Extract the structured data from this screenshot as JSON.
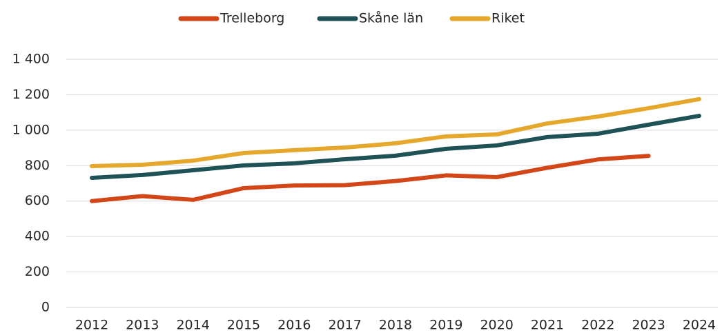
{
  "chart_data": {
    "type": "line",
    "categories": [
      "2012",
      "2013",
      "2014",
      "2015",
      "2016",
      "2017",
      "2018",
      "2019",
      "2020",
      "2021",
      "2022",
      "2023",
      "2024"
    ],
    "series": [
      {
        "name": "Trelleborg",
        "color": "#d24618",
        "values": [
          600,
          628,
          607,
          673,
          688,
          690,
          713,
          745,
          735,
          788,
          835,
          855,
          null
        ]
      },
      {
        "name": "Skåne län",
        "color": "#1e5257",
        "values": [
          731,
          747,
          774,
          801,
          813,
          836,
          856,
          895,
          914,
          961,
          980,
          1031,
          1081
        ]
      },
      {
        "name": "Riket",
        "color": "#e6a82c",
        "values": [
          797,
          805,
          828,
          871,
          887,
          902,
          926,
          965,
          976,
          1038,
          1077,
          1124,
          1175
        ]
      }
    ],
    "ylim": [
      0,
      1400
    ],
    "yticks": [
      0,
      200,
      400,
      600,
      800,
      {
        "value": 1000,
        "label": "1 000"
      },
      {
        "value": 1200,
        "label": "1 200"
      },
      {
        "value": 1400,
        "label": "1 400"
      }
    ],
    "grid": true,
    "legend": "top"
  }
}
